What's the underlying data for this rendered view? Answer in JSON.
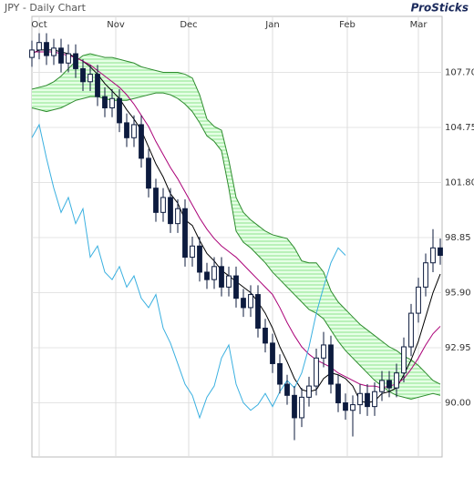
{
  "chart_data": {
    "type": "candlestick",
    "title": "JPY - Daily Chart",
    "brand": "ProSticks",
    "xlim": [
      0,
      112.5
    ],
    "xticks": [
      {
        "value": 2,
        "label": "Oct"
      },
      {
        "value": 23,
        "label": "Nov"
      },
      {
        "value": 43,
        "label": "Dec"
      },
      {
        "value": 66,
        "label": "Jan"
      },
      {
        "value": 86.5,
        "label": "Feb"
      },
      {
        "value": 106,
        "label": "Mar"
      }
    ],
    "ylim": [
      87.1,
      110.7
    ],
    "yticks": [
      {
        "value": 107.7,
        "label": "107.70"
      },
      {
        "value": 104.75,
        "label": "104.75"
      },
      {
        "value": 101.8,
        "label": "101.80"
      },
      {
        "value": 98.85,
        "label": "98.85"
      },
      {
        "value": 95.9,
        "label": "95.90"
      },
      {
        "value": 92.95,
        "label": "92.95"
      },
      {
        "value": 90,
        "label": "90.00"
      }
    ],
    "grid": true,
    "up_color": "#ffffff",
    "down_color": "#0d1b3e",
    "x": [
      0,
      2,
      4,
      6,
      8,
      10,
      12,
      14,
      16,
      18,
      20,
      22,
      24,
      26,
      28,
      30,
      32,
      34,
      36,
      38,
      40,
      42,
      44,
      46,
      48,
      50,
      52,
      54,
      56,
      58,
      60,
      62,
      64,
      66,
      68,
      70,
      72,
      74,
      76,
      78,
      80,
      82,
      84,
      86,
      88,
      90,
      92,
      94,
      96,
      98,
      100,
      102,
      104,
      106,
      108,
      110,
      112
    ],
    "open": [
      108.5,
      108.9,
      109.3,
      108.6,
      109.0,
      108.2,
      108.7,
      107.9,
      107.2,
      107.6,
      106.4,
      105.8,
      106.3,
      105.0,
      104.2,
      104.9,
      103.1,
      101.5,
      100.2,
      101.0,
      99.6,
      100.4,
      97.8,
      98.4,
      97.0,
      96.6,
      97.3,
      96.2,
      96.8,
      95.6,
      95.1,
      95.8,
      94.0,
      93.2,
      92.1,
      91.0,
      90.4,
      89.2,
      90.3,
      90.9,
      92.4,
      93.1,
      91.0,
      90.0,
      89.6,
      89.9,
      90.5,
      89.8,
      90.6,
      91.2,
      90.8,
      91.6,
      93.0,
      94.8,
      96.2,
      97.5,
      98.3
    ],
    "high": [
      109.4,
      109.8,
      109.8,
      109.5,
      109.5,
      109.2,
      109.2,
      108.4,
      108.1,
      108.1,
      106.9,
      106.8,
      106.8,
      105.5,
      105.4,
      105.4,
      103.6,
      102.0,
      101.5,
      101.5,
      100.9,
      100.9,
      98.9,
      98.9,
      97.5,
      97.8,
      97.8,
      97.3,
      97.3,
      96.1,
      96.3,
      96.3,
      94.5,
      93.7,
      92.6,
      91.5,
      90.9,
      90.8,
      91.4,
      92.9,
      93.8,
      93.6,
      91.5,
      90.5,
      90.4,
      91.0,
      91.0,
      91.1,
      91.7,
      91.7,
      92.1,
      93.5,
      95.3,
      96.7,
      98.0,
      99.3,
      98.8
    ],
    "low": [
      108.0,
      108.4,
      108.1,
      108.1,
      107.7,
      107.7,
      107.4,
      106.7,
      106.7,
      105.9,
      105.3,
      105.3,
      104.5,
      103.7,
      103.7,
      102.6,
      101.0,
      99.7,
      99.7,
      99.1,
      99.1,
      97.3,
      97.3,
      96.5,
      96.1,
      96.1,
      95.7,
      95.7,
      95.1,
      94.6,
      94.6,
      93.5,
      92.7,
      91.6,
      90.5,
      89.9,
      88.0,
      88.7,
      89.8,
      90.4,
      91.9,
      90.5,
      89.5,
      89.1,
      88.2,
      89.4,
      89.3,
      89.3,
      90.1,
      90.3,
      90.3,
      91.1,
      92.5,
      94.3,
      95.7,
      97.0,
      97.4
    ],
    "close": [
      108.9,
      109.3,
      108.6,
      109.0,
      108.2,
      108.7,
      107.9,
      107.2,
      107.6,
      106.4,
      105.8,
      106.3,
      105.0,
      104.2,
      104.9,
      103.1,
      101.5,
      100.2,
      101.0,
      99.6,
      100.4,
      97.8,
      98.4,
      97.0,
      96.6,
      97.3,
      96.2,
      96.8,
      95.6,
      95.1,
      95.8,
      94.0,
      93.2,
      92.1,
      91.0,
      90.4,
      89.2,
      90.3,
      90.9,
      92.4,
      93.1,
      91.0,
      90.0,
      89.6,
      89.9,
      90.5,
      89.8,
      90.6,
      91.2,
      90.8,
      91.6,
      93.0,
      94.8,
      96.2,
      97.5,
      98.3,
      97.9
    ],
    "cloud": {
      "color": "#ccffcc",
      "edge_color": "#2e8b2e",
      "upper": [
        106.8,
        106.9,
        107.0,
        107.2,
        107.5,
        107.9,
        108.3,
        108.6,
        108.7,
        108.6,
        108.5,
        108.5,
        108.4,
        108.3,
        108.2,
        108.0,
        107.9,
        107.8,
        107.7,
        107.7,
        107.7,
        107.6,
        107.4,
        106.5,
        105.2,
        104.8,
        104.6,
        103.0,
        101.0,
        100.2,
        99.8,
        99.5,
        99.2,
        99.0,
        98.9,
        98.8,
        98.3,
        97.6,
        97.5,
        97.5,
        97.0,
        96.0,
        95.4,
        95.0,
        94.6,
        94.2,
        93.9,
        93.6,
        93.3,
        93.0,
        92.8,
        92.5,
        92.3,
        92.0,
        91.6,
        91.2,
        91.0
      ],
      "lower": [
        105.8,
        105.7,
        105.6,
        105.7,
        105.8,
        106.0,
        106.2,
        106.3,
        106.4,
        106.4,
        106.3,
        106.2,
        106.2,
        106.2,
        106.3,
        106.4,
        106.5,
        106.6,
        106.6,
        106.5,
        106.3,
        106.0,
        105.6,
        105.0,
        104.3,
        104.0,
        103.5,
        101.5,
        99.2,
        98.6,
        98.3,
        97.9,
        97.5,
        97.0,
        96.6,
        96.2,
        95.8,
        95.4,
        95.0,
        94.8,
        94.5,
        93.9,
        93.3,
        92.8,
        92.4,
        92.0,
        91.6,
        91.2,
        90.9,
        90.6,
        90.4,
        90.3,
        90.2,
        90.3,
        90.4,
        90.5,
        90.4
      ]
    },
    "lines": [
      {
        "color": "#000000",
        "values": [
          108.7,
          108.9,
          108.9,
          108.9,
          108.8,
          108.7,
          108.5,
          108.3,
          108.0,
          107.6,
          107.1,
          106.7,
          106.3,
          105.7,
          105.2,
          104.6,
          103.7,
          102.8,
          102.1,
          101.2,
          100.7,
          99.8,
          99.5,
          98.7,
          98.0,
          97.6,
          97.1,
          96.8,
          96.5,
          96.2,
          95.9,
          95.4,
          94.8,
          94.0,
          93.0,
          92.2,
          91.3,
          90.7,
          90.6,
          90.7,
          91.3,
          91.6,
          91.5,
          91.3,
          90.9,
          90.1,
          90.0,
          90.1,
          90.5,
          90.6,
          90.8,
          91.5,
          92.3,
          93.3,
          94.6,
          95.9,
          96.9
        ]
      },
      {
        "color": "#aa0077",
        "values": [
          108.8,
          108.8,
          108.8,
          108.8,
          108.7,
          108.6,
          108.5,
          108.3,
          108.1,
          107.8,
          107.5,
          107.2,
          106.9,
          106.5,
          106.0,
          105.4,
          104.8,
          104.0,
          103.3,
          102.6,
          102.0,
          101.3,
          100.6,
          99.9,
          99.3,
          98.8,
          98.4,
          98.1,
          97.8,
          97.4,
          97.0,
          96.6,
          96.2,
          95.8,
          95.1,
          94.3,
          93.6,
          93.0,
          92.6,
          92.3,
          92.1,
          91.9,
          91.6,
          91.4,
          91.2,
          91.0,
          90.9,
          90.9,
          90.8,
          90.9,
          91.0,
          91.3,
          91.8,
          92.4,
          93.1,
          93.7,
          94.1
        ]
      },
      {
        "color": "#3ab0e0",
        "values": [
          104.2,
          104.9,
          103.1,
          101.5,
          100.2,
          101.0,
          99.6,
          100.4,
          97.8,
          98.4,
          97.0,
          96.6,
          97.3,
          96.2,
          96.8,
          95.6,
          95.1,
          95.8,
          94.0,
          93.2,
          92.1,
          91.0,
          90.4,
          89.2,
          90.3,
          90.9,
          92.4,
          93.1,
          91.0,
          90.0,
          89.6,
          89.9,
          90.5,
          89.8,
          90.6,
          91.2,
          90.8,
          91.6,
          93.0,
          94.8,
          96.2,
          97.5,
          98.3,
          97.9,
          null,
          null,
          null,
          null,
          null,
          null,
          null,
          null,
          null,
          null,
          null,
          null,
          null
        ]
      }
    ]
  }
}
